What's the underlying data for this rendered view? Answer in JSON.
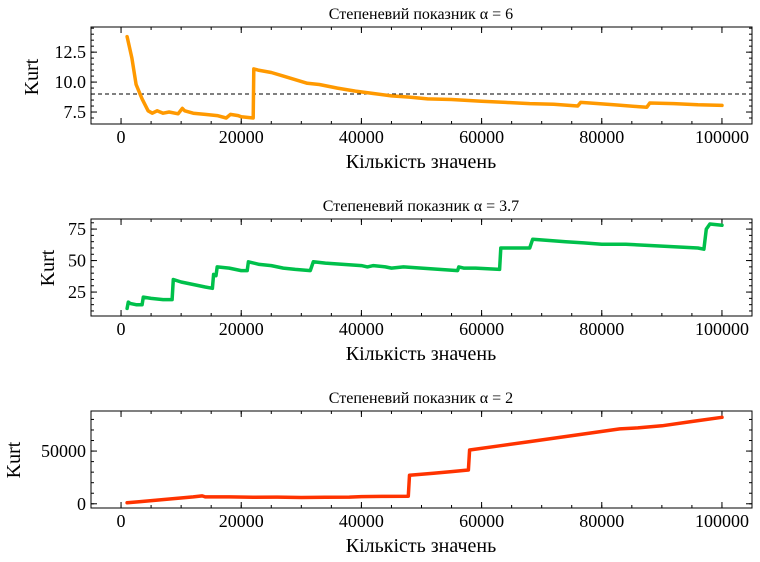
{
  "chart_data": [
    {
      "type": "line",
      "title": "Степеневий показник α = 6",
      "xlabel": "Кількість значень",
      "ylabel": "Kurt",
      "xlim": [
        -5000,
        105000
      ],
      "ylim": [
        6.5,
        14.6
      ],
      "xticks": [
        0,
        20000,
        40000,
        60000,
        80000,
        100000
      ],
      "yticks": [
        7.5,
        10.0,
        12.5
      ],
      "ytick_labels": [
        "7.5",
        "10.0",
        "12.5"
      ],
      "hline": 9,
      "color": "#ff9900",
      "series": [
        {
          "x": [
            1000,
            1800,
            2500,
            3500,
            4500,
            5200,
            6000,
            7000,
            8000,
            9500,
            10200,
            10600,
            12000,
            14000,
            16000,
            17500,
            18200,
            19500,
            20000,
            22000,
            22100,
            22800,
            25000,
            27000,
            29000,
            31000,
            33000,
            36000,
            39000,
            42000,
            45000,
            48000,
            51000,
            55000,
            60000,
            64000,
            68000,
            72000,
            76000,
            76500,
            78000,
            82000,
            86000,
            87500,
            88000,
            92000,
            96000,
            100000
          ],
          "y": [
            13.8,
            12.0,
            9.8,
            8.6,
            7.6,
            7.4,
            7.6,
            7.4,
            7.5,
            7.35,
            7.8,
            7.6,
            7.4,
            7.3,
            7.2,
            7.0,
            7.3,
            7.2,
            7.1,
            7.0,
            11.1,
            11.0,
            10.8,
            10.5,
            10.2,
            9.9,
            9.8,
            9.5,
            9.25,
            9.05,
            8.85,
            8.75,
            8.6,
            8.55,
            8.4,
            8.3,
            8.2,
            8.15,
            8.0,
            8.3,
            8.25,
            8.1,
            7.95,
            7.9,
            8.25,
            8.2,
            8.1,
            8.05
          ]
        }
      ]
    },
    {
      "type": "line",
      "title": "Степеневий показник α = 3.7",
      "xlabel": "Кількість значень",
      "ylabel": "Kurt",
      "xlim": [
        -5000,
        105000
      ],
      "ylim": [
        6,
        83
      ],
      "xticks": [
        0,
        20000,
        40000,
        60000,
        80000,
        100000
      ],
      "yticks": [
        25,
        50,
        75
      ],
      "ytick_labels": [
        "25",
        "50",
        "75"
      ],
      "color": "#00c04b",
      "series": [
        {
          "x": [
            1000,
            1200,
            1500,
            2500,
            3500,
            3700,
            5000,
            7000,
            8500,
            8700,
            10000,
            12000,
            14000,
            15200,
            15400,
            15800,
            16000,
            18000,
            20000,
            21000,
            21200,
            23000,
            25000,
            27000,
            29000,
            31500,
            32000,
            34000,
            37000,
            40000,
            41000,
            42000,
            44000,
            45000,
            47000,
            50000,
            53000,
            56000,
            56200,
            57000,
            59000,
            63000,
            63200,
            65000,
            68000,
            68500,
            71000,
            74000,
            77000,
            80000,
            84000,
            88000,
            92000,
            96000,
            97000,
            97400,
            98000,
            100000
          ],
          "y": [
            12,
            17,
            16,
            15,
            15,
            21,
            20,
            19,
            19,
            35,
            33,
            31,
            29,
            28,
            39,
            38,
            45,
            44,
            42,
            42,
            49,
            47,
            46,
            44,
            43,
            42,
            49,
            48,
            47,
            46,
            45,
            46,
            45,
            44,
            45,
            44,
            43,
            42,
            45,
            44,
            44,
            43,
            60,
            60,
            60,
            67,
            66,
            65,
            64,
            63,
            63,
            62,
            61,
            60,
            59,
            75,
            79,
            78
          ]
        }
      ]
    },
    {
      "type": "line",
      "title": "Степеневий показник α = 2",
      "xlabel": "Кількість значень",
      "ylabel": "Kurt",
      "xlim": [
        -5000,
        105000
      ],
      "ylim": [
        -4000,
        88000
      ],
      "xticks": [
        0,
        20000,
        40000,
        60000,
        80000,
        100000
      ],
      "yticks": [
        0,
        50000
      ],
      "ytick_labels": [
        "0",
        "50000"
      ],
      "color": "#ff3300",
      "series": [
        {
          "x": [
            1000,
            3000,
            6000,
            9000,
            12000,
            13500,
            14000,
            18000,
            22000,
            26000,
            30000,
            34000,
            38000,
            40000,
            44000,
            47800,
            48000,
            52000,
            55000,
            57800,
            58000,
            63000,
            68000,
            73000,
            78000,
            83000,
            86000,
            90000,
            95000,
            100000
          ],
          "y": [
            1000,
            2000,
            3500,
            5000,
            6500,
            7500,
            6500,
            6500,
            6200,
            6300,
            6000,
            6200,
            6300,
            6800,
            7000,
            7200,
            27000,
            29000,
            30500,
            32000,
            51000,
            55000,
            59000,
            63000,
            67000,
            71000,
            72000,
            74000,
            78000,
            82000
          ]
        }
      ]
    }
  ]
}
